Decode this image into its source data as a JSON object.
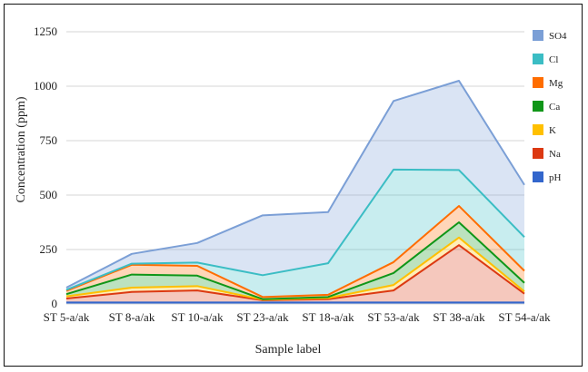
{
  "chart_data": {
    "type": "area",
    "stacked": true,
    "xlabel": "Sample label",
    "ylabel": "Concentration (ppm)",
    "ylim": [
      0,
      1250
    ],
    "yticks": [
      0,
      250,
      500,
      750,
      1000,
      1250
    ],
    "grid": "horizontal",
    "legend": "right",
    "categories": [
      "ST 5-a/ak",
      "ST 8-a/ak",
      "ST 10-a/ak",
      "ST 23-a/ak",
      "ST 18-a/ak",
      "ST 53-a/ak",
      "ST 38-a/ak",
      "ST 54-a/ak"
    ],
    "series": [
      {
        "name": "pH",
        "color": "#3366cc",
        "values": [
          7,
          7,
          7,
          7,
          7,
          7,
          7,
          7
        ]
      },
      {
        "name": "Na",
        "color": "#dc3912",
        "values": [
          18,
          48,
          55,
          10,
          15,
          55,
          263,
          40
        ]
      },
      {
        "name": "K",
        "color": "#ffc000",
        "values": [
          10,
          20,
          20,
          3,
          5,
          25,
          35,
          10
        ]
      },
      {
        "name": "Ca",
        "color": "#109618",
        "values": [
          10,
          60,
          48,
          2,
          5,
          55,
          70,
          40
        ]
      },
      {
        "name": "Mg",
        "color": "#ff6d00",
        "values": [
          15,
          45,
          45,
          10,
          10,
          50,
          75,
          55
        ]
      },
      {
        "name": "Cl",
        "color": "#3bbdc4",
        "values": [
          5,
          5,
          15,
          100,
          145,
          425,
          165,
          155
        ]
      },
      {
        "name": "SO4",
        "color": "#7b9fd6",
        "values": [
          10,
          45,
          90,
          275,
          235,
          315,
          410,
          240
        ]
      }
    ]
  }
}
